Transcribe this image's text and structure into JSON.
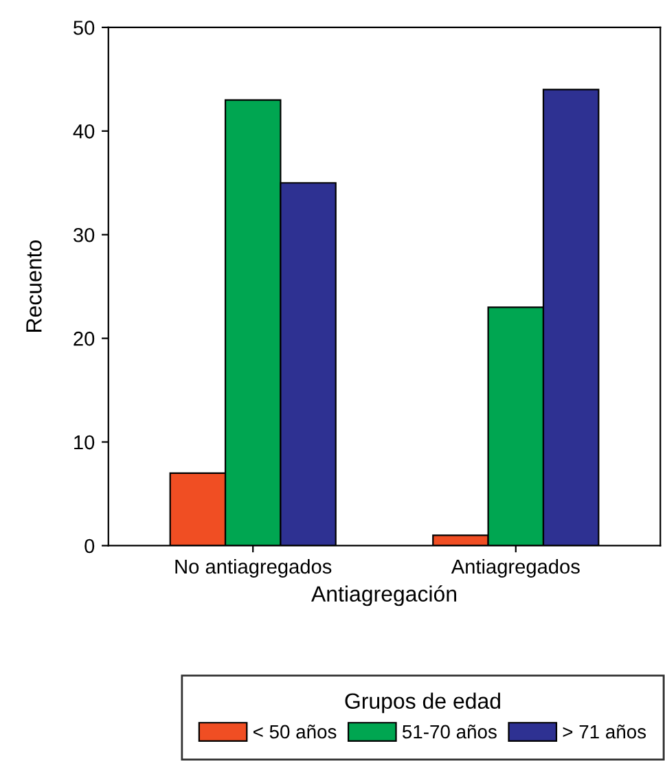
{
  "chart_data": {
    "type": "bar",
    "xlabel": "Antiagregación",
    "ylabel": "Recuento",
    "legend_title": "Grupos de edad",
    "categories": [
      "No antiagregados",
      "Antiagregados"
    ],
    "series": [
      {
        "name": "< 50 años",
        "color": "#f04e23",
        "values": [
          7,
          1
        ]
      },
      {
        "name": "51-70 años",
        "color": "#00a651",
        "values": [
          43,
          23
        ]
      },
      {
        "name": "> 71 años",
        "color": "#2e3192",
        "values": [
          35,
          44
        ]
      }
    ],
    "ylim": [
      0,
      50
    ],
    "yticks": [
      0,
      10,
      20,
      30,
      40,
      50
    ],
    "grid": false,
    "legend": "bottom"
  }
}
